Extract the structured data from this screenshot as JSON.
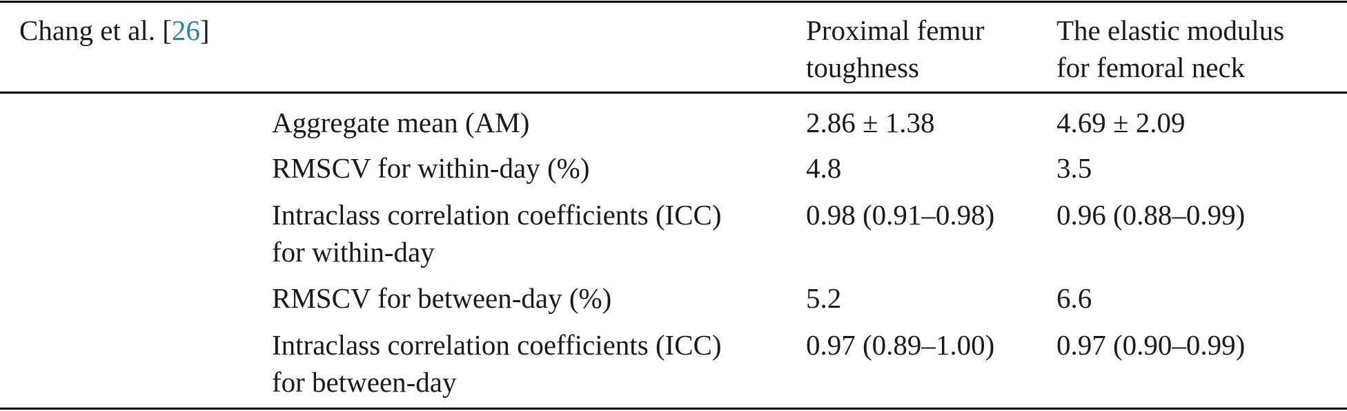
{
  "table": {
    "study": {
      "author": "Chang et al. [",
      "ref": "26",
      "close": "]"
    },
    "columns": [
      {
        "line1": "Proximal femur",
        "line2": "toughness"
      },
      {
        "line1": "The elastic modulus",
        "line2": "for femoral neck"
      }
    ],
    "rows": [
      {
        "metric_line1": "Aggregate mean (AM)",
        "metric_line2": "",
        "a": "2.86 ± 1.38",
        "b": "4.69 ± 2.09"
      },
      {
        "metric_line1": "RMSCV for within-day (%)",
        "metric_line2": "",
        "a": "4.8",
        "b": "3.5"
      },
      {
        "metric_line1": "Intraclass correlation coefficients (ICC)",
        "metric_line2": "for within-day",
        "a": "0.98 (0.91–0.98)",
        "b": "0.96 (0.88–0.99)"
      },
      {
        "metric_line1": "RMSCV for between-day (%)",
        "metric_line2": "",
        "a": "5.2",
        "b": "6.6"
      },
      {
        "metric_line1": "Intraclass correlation coefficients (ICC)",
        "metric_line2": "for between-day",
        "a": "0.97 (0.89–1.00)",
        "b": "0.97 (0.90–0.99)"
      }
    ]
  }
}
